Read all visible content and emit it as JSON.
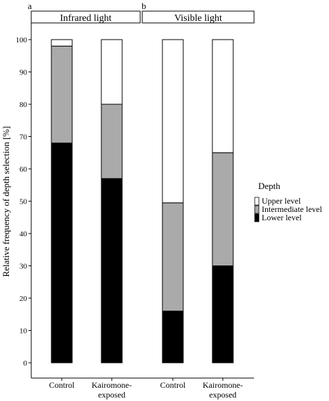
{
  "chart_data": {
    "type": "bar",
    "stacked": true,
    "ylabel": "Relative frequency of depth selection [%]",
    "ylim": [
      0,
      100
    ],
    "yticks": [
      0,
      10,
      20,
      30,
      40,
      50,
      60,
      70,
      80,
      90,
      100
    ],
    "grid": false,
    "legend": {
      "title": "Depth",
      "placement": "right",
      "entries": [
        "Upper level",
        "Intermediate level",
        "Lower level"
      ]
    },
    "colors": {
      "Upper level": "#ffffff",
      "Intermediate level": "#aaaaaa",
      "Lower level": "#000000"
    },
    "panels": [
      {
        "tag": "a",
        "strip": "Infrared light",
        "categories": [
          "Control",
          "Kairomone-exposed"
        ],
        "category_lines": [
          [
            "Control"
          ],
          [
            "Kairomone-",
            "exposed"
          ]
        ],
        "series": [
          {
            "name": "Lower level",
            "values": [
              68,
              57
            ]
          },
          {
            "name": "Intermediate level",
            "values": [
              30,
              23
            ]
          },
          {
            "name": "Upper level",
            "values": [
              2,
              20
            ]
          }
        ]
      },
      {
        "tag": "b",
        "strip": "Visible light",
        "categories": [
          "Control",
          "Kairomone-exposed"
        ],
        "category_lines": [
          [
            "Control"
          ],
          [
            "Kairomone-",
            "exposed"
          ]
        ],
        "series": [
          {
            "name": "Lower level",
            "values": [
              16,
              30
            ]
          },
          {
            "name": "Intermediate level",
            "values": [
              33.5,
              35
            ]
          },
          {
            "name": "Upper level",
            "values": [
              50.5,
              35
            ]
          }
        ]
      }
    ]
  }
}
